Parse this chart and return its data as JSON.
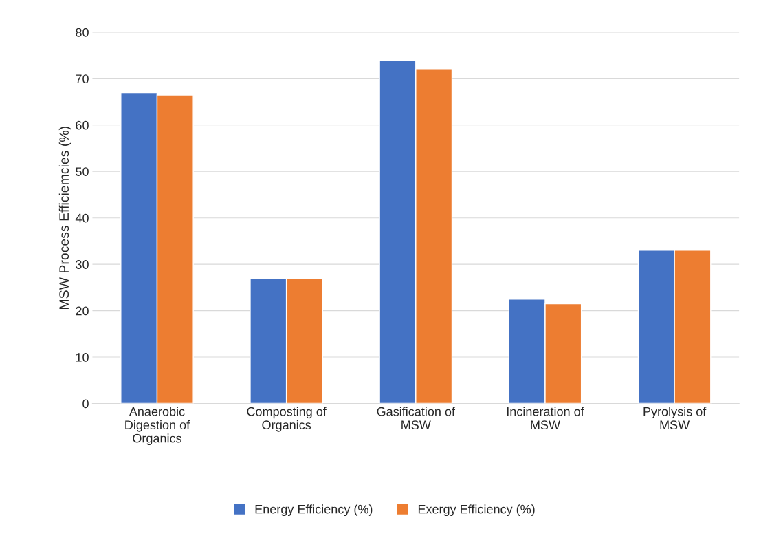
{
  "chart_data": {
    "type": "bar",
    "ylabel": "MSW Process Efficiemcies (%)",
    "categories": [
      "Anaerobic\nDigestion of\nOrganics",
      "Composting of\nOrganics",
      "Gasification of\nMSW",
      "Incineration of\nMSW",
      "Pyrolysis of\nMSW"
    ],
    "series": [
      {
        "name": "Energy Efficiency (%)",
        "color": "#4472c4",
        "values": [
          67,
          27,
          74,
          22.5,
          33
        ]
      },
      {
        "name": "Exergy Efficiency (%)",
        "color": "#ed7d31",
        "values": [
          66.5,
          27,
          72,
          21.5,
          33
        ]
      }
    ],
    "ylim": [
      0,
      80
    ],
    "yticks": [
      0,
      10,
      20,
      30,
      40,
      50,
      60,
      70,
      80
    ],
    "grid": "y",
    "legend": "bottom"
  }
}
